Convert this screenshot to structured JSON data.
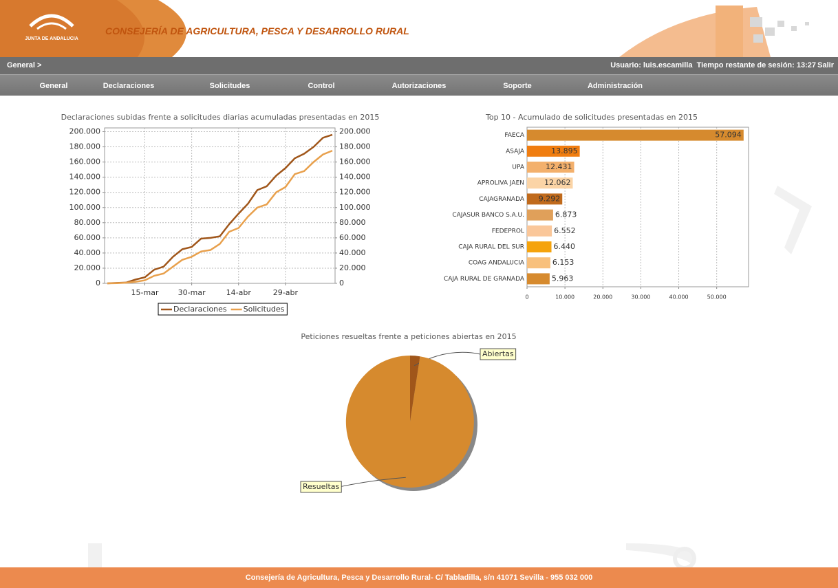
{
  "header": {
    "logo_text": "JUNTA DE ANDALUCIA",
    "title": "CONSEJERÍA DE AGRICULTURA, PESCA Y DESARROLLO RURAL"
  },
  "breadcrumb": "General >",
  "session": {
    "user": "Usuario: luis.escamilla",
    "time": "Tiempo restante de sesión: 13:27",
    "logout": "Salir"
  },
  "nav": {
    "items": [
      "General",
      "Declaraciones",
      "Solicitudes",
      "Control",
      "Autorizaciones",
      "Soporte",
      "Administración"
    ]
  },
  "footer": "Consejería de Agricultura, Pesca y Desarrollo Rural- C/ Tabladilla, s/n 41071 Sevilla - 955 032 000",
  "chart_data": [
    {
      "type": "line",
      "title": "Declaraciones subidas frente a solicitudes diarias acumuladas presentadas en 2015",
      "categories": [
        null,
        null,
        null,
        null,
        "15-mar",
        null,
        null,
        null,
        null,
        "30-mar",
        null,
        null,
        null,
        null,
        "14-abr",
        null,
        null,
        null,
        null,
        "29-abr",
        null,
        null,
        null,
        null,
        null
      ],
      "series": [
        {
          "name": "Declaraciones",
          "color": "#a0561a",
          "values": [
            0,
            500,
            1000,
            5000,
            8000,
            18000,
            22000,
            35000,
            45000,
            48000,
            59000,
            60000,
            62000,
            78000,
            92000,
            105000,
            123000,
            128000,
            142000,
            152000,
            165000,
            171000,
            180000,
            192000,
            196000
          ]
        },
        {
          "name": "Solicitudes",
          "color": "#e8a04c",
          "axis": "y2",
          "values": [
            0,
            300,
            800,
            2000,
            4000,
            10000,
            13000,
            22000,
            31000,
            35000,
            42000,
            44000,
            52000,
            68000,
            73000,
            88000,
            100000,
            104000,
            120000,
            127000,
            144000,
            148000,
            160000,
            170000,
            175000
          ]
        }
      ],
      "ylim": [
        0,
        205000
      ],
      "yticks": [
        0,
        {
          "value": 20000,
          "label": "20.000"
        },
        {
          "value": 40000,
          "label": "40.000"
        },
        {
          "value": 60000,
          "label": "60.000"
        },
        {
          "value": 80000,
          "label": "80.000"
        },
        {
          "value": 100000,
          "label": "100.000"
        },
        {
          "value": 120000,
          "label": "120.000"
        },
        {
          "value": 140000,
          "label": "140.000"
        },
        {
          "value": 160000,
          "label": "160.000"
        },
        {
          "value": 180000,
          "label": "180.000"
        },
        {
          "value": 200000,
          "label": "200.000"
        }
      ],
      "y2lim": [
        0,
        205000
      ],
      "y2ticks": [
        0,
        {
          "value": 20000,
          "label": "20.000"
        },
        {
          "value": 40000,
          "label": "40.000"
        },
        {
          "value": 60000,
          "label": "60.000"
        },
        {
          "value": 80000,
          "label": "80.000"
        },
        {
          "value": 100000,
          "label": "100.000"
        },
        {
          "value": 120000,
          "label": "120.000"
        },
        {
          "value": 140000,
          "label": "140.000"
        },
        {
          "value": 160000,
          "label": "160.000"
        },
        {
          "value": 180000,
          "label": "180.000"
        },
        {
          "value": 200000,
          "label": "200.000"
        }
      ],
      "grid": true,
      "legend": "bottom"
    },
    {
      "type": "hbar",
      "title": "Top 10 - Acumulado de solicitudes presentadas en 2015",
      "categories": [
        "FAECA",
        "ASAJA",
        "UPA",
        "APROLIVA JAEN",
        "CAJAGRANADA",
        "CAJASUR BANCO S.A.U.",
        "FEDEPROL",
        "CAJA RURAL DEL SUR",
        "COAG ANDALUCIA",
        "CAJA RURAL DE GRANADA"
      ],
      "values": [
        57094,
        13895,
        12431,
        12062,
        9292,
        6873,
        6552,
        6440,
        6153,
        5963
      ],
      "value_labels": [
        "57.094",
        "13.895",
        "12.431",
        "12.062",
        "9.292",
        "6.873",
        "6.552",
        "6.440",
        "6.153",
        "5.963"
      ],
      "colors": [
        "#d68a2e",
        "#f07d10",
        "#f3b06c",
        "#fbd4a6",
        "#c06a1c",
        "#e0a05a",
        "#fac79a",
        "#f5a30c",
        "#f8c07c",
        "#d68a2e"
      ],
      "xlim": [
        0,
        58400
      ],
      "xticks": [
        0,
        {
          "value": 10000,
          "label": "10.000"
        },
        {
          "value": 20000,
          "label": "20.000"
        },
        {
          "value": 30000,
          "label": "30.000"
        },
        {
          "value": 40000,
          "label": "40.000"
        },
        {
          "value": 50000,
          "label": "50.000"
        }
      ],
      "grid": true
    },
    {
      "type": "pie",
      "title": "Peticiones resueltas frente a peticiones abiertas en 2015",
      "categories": [
        "Abiertas",
        "Resueltas"
      ],
      "values": [
        2.5,
        97.5
      ],
      "colors": [
        "#a0561a",
        "#d68a2e"
      ]
    }
  ]
}
